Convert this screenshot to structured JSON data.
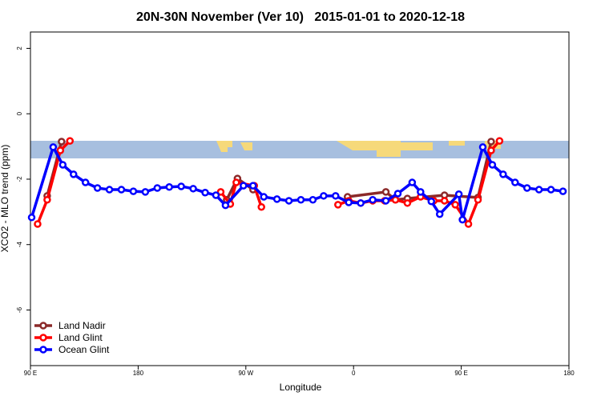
{
  "chart_data": {
    "type": "line",
    "title": "20N-30N November (Ver 10)   2015-01-01 to 2020-12-18",
    "xlabel": "Longitude",
    "ylabel": "XCO2 - MLO trend (ppm)",
    "xlim": [
      90,
      540
    ],
    "ylim": [
      -7.7,
      2.5
    ],
    "xticks": [
      {
        "value": 90,
        "label": "90 E"
      },
      180,
      {
        "value": 270,
        "label": "90 W"
      },
      {
        "value": 360,
        "label": "0"
      },
      {
        "value": 450,
        "label": "90 E"
      },
      {
        "value": 540,
        "label": "180"
      }
    ],
    "yticks": [
      2,
      0,
      -2,
      -4,
      -6
    ],
    "legend": "bottom-left",
    "series": [
      {
        "name": "Land Nadir",
        "color": "#8b2a2a",
        "x": [
          104,
          116,
          null,
          254,
          263,
          276,
          null,
          355,
          387,
          395,
          405,
          436,
          464,
          475
        ],
        "values": [
          -2.51,
          -0.85,
          null,
          -2.63,
          -1.98,
          -2.32,
          null,
          -2.54,
          -2.39,
          -2.63,
          -2.59,
          -2.49,
          -2.56,
          -0.85
        ]
      },
      {
        "name": "Land Glint",
        "color": "#ff0000",
        "x": [
          96,
          104,
          115,
          123,
          null,
          249,
          257,
          262,
          277,
          283,
          null,
          347,
          356,
          366,
          376,
          386,
          395,
          405,
          416,
          427,
          436,
          445,
          456,
          464,
          475,
          482
        ],
        "values": [
          -3.37,
          -2.63,
          -1.12,
          -0.83,
          null,
          -2.39,
          -2.76,
          -2.1,
          -2.2,
          -2.85,
          null,
          -2.78,
          -2.66,
          -2.73,
          -2.66,
          -2.66,
          -2.63,
          -2.73,
          -2.54,
          -2.66,
          -2.66,
          -2.78,
          -3.37,
          -2.63,
          -1.12,
          -0.83
        ]
      },
      {
        "name": "Ocean Glint",
        "color": "#0000ff",
        "x": [
          91,
          109,
          117,
          126,
          136,
          146,
          156,
          166,
          176,
          186,
          196,
          206,
          216,
          226,
          236,
          245,
          253,
          268,
          276,
          285,
          296,
          306,
          316,
          326,
          335,
          345,
          356,
          366,
          376,
          387,
          397,
          409,
          416,
          425,
          432,
          448,
          451,
          468,
          476,
          485,
          495,
          505,
          515,
          525,
          535
        ],
        "values": [
          -3.17,
          -1.02,
          -1.56,
          -1.85,
          -2.1,
          -2.27,
          -2.32,
          -2.32,
          -2.37,
          -2.39,
          -2.27,
          -2.24,
          -2.22,
          -2.29,
          -2.41,
          -2.49,
          -2.8,
          -2.2,
          -2.2,
          -2.54,
          -2.61,
          -2.66,
          -2.63,
          -2.63,
          -2.51,
          -2.51,
          -2.71,
          -2.73,
          -2.63,
          -2.66,
          -2.44,
          -2.1,
          -2.39,
          -2.68,
          -3.07,
          -2.46,
          -3.24,
          -1.02,
          -1.56,
          -1.85,
          -2.1,
          -2.27,
          -2.32,
          -2.32,
          -2.37
        ]
      }
    ]
  }
}
